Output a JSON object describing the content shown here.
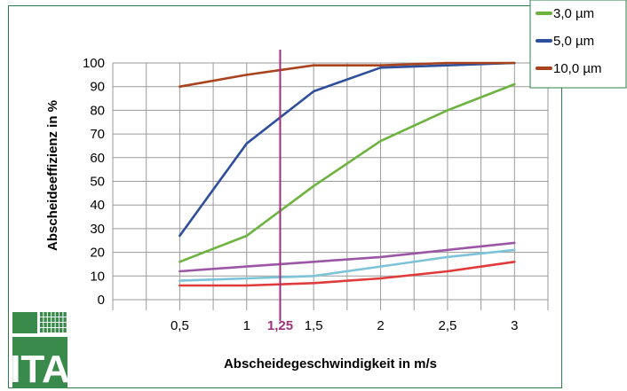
{
  "chart_data": {
    "type": "line",
    "title": "",
    "xlabel": "Abscheidegeschwindigkeit in m/s",
    "ylabel": "Abscheideeffizienz in %",
    "x": [
      0.5,
      1,
      1.5,
      2,
      2.5,
      3
    ],
    "xticks": [
      "0,5",
      "1",
      "1,5",
      "2",
      "2,5",
      "3"
    ],
    "yticks": [
      "0",
      "10",
      "20",
      "30",
      "40",
      "50",
      "60",
      "70",
      "80",
      "90",
      "100"
    ],
    "xlim": [
      0,
      3.25
    ],
    "ylim": [
      0,
      100
    ],
    "grid": true,
    "legend_position": "top-right",
    "marker": {
      "x": 1.25,
      "label": "1,25",
      "color": "#a0307a"
    },
    "series": [
      {
        "name": "",
        "color": "#e03a3a",
        "values": [
          6,
          6,
          7,
          9,
          12,
          16
        ],
        "in_legend": false
      },
      {
        "name": "",
        "color": "#7cc3d8",
        "values": [
          8,
          9,
          10,
          14,
          18,
          21
        ],
        "in_legend": false
      },
      {
        "name": "",
        "color": "#9b57a6",
        "values": [
          12,
          14,
          16,
          18,
          21,
          24
        ],
        "in_legend": false
      },
      {
        "name": "3,0 µm",
        "color": "#6db33f",
        "values": [
          16,
          27,
          48,
          67,
          80,
          91
        ],
        "in_legend": true
      },
      {
        "name": "5,0 µm",
        "color": "#2e4f9c",
        "values": [
          27,
          66,
          88,
          98,
          99,
          100
        ],
        "in_legend": true
      },
      {
        "name": "10,0 µm",
        "color": "#a9431e",
        "values": [
          90,
          95,
          99,
          99,
          100,
          100
        ],
        "in_legend": true
      }
    ]
  },
  "logo": {
    "text": "ITA",
    "color": "#3a8a4c"
  }
}
